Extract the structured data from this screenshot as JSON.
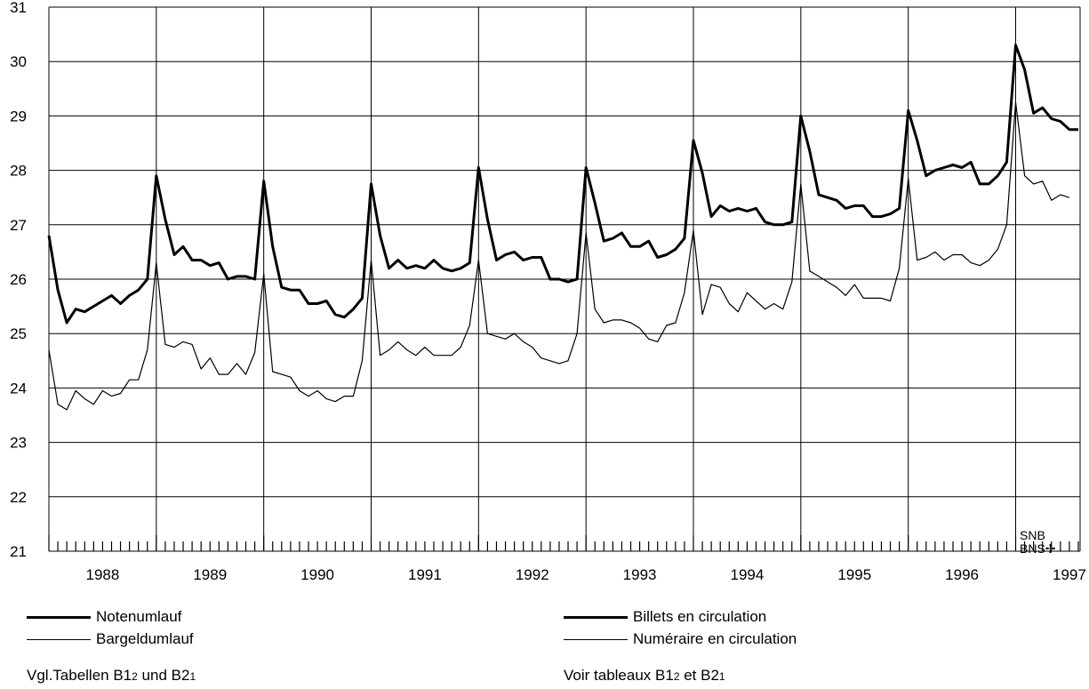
{
  "chart_data": {
    "type": "line",
    "ylim": [
      21,
      31
    ],
    "y_ticks": [
      21,
      22,
      23,
      24,
      25,
      26,
      27,
      28,
      29,
      30,
      31
    ],
    "x_start": 1988.0,
    "x_end": 1997.6,
    "x_tick_labels": [
      "1988",
      "1989",
      "1990",
      "1991",
      "1992",
      "1993",
      "1994",
      "1995",
      "1996",
      "1997"
    ],
    "grid": true,
    "series": [
      {
        "name": "Notenumlauf / Billets en circulation",
        "weight": "heavy",
        "values": [
          26.8,
          25.8,
          25.2,
          25.45,
          25.4,
          25.5,
          25.6,
          25.7,
          25.55,
          25.7,
          25.8,
          26.0,
          27.9,
          27.1,
          26.45,
          26.6,
          26.35,
          26.35,
          26.25,
          26.3,
          26.0,
          26.05,
          26.05,
          26.0,
          27.8,
          26.6,
          25.85,
          25.8,
          25.8,
          25.55,
          25.55,
          25.6,
          25.35,
          25.3,
          25.45,
          25.65,
          27.75,
          26.8,
          26.2,
          26.35,
          26.2,
          26.25,
          26.2,
          26.35,
          26.2,
          26.15,
          26.2,
          26.3,
          28.05,
          27.1,
          26.35,
          26.45,
          26.5,
          26.35,
          26.4,
          26.4,
          26.0,
          26.0,
          25.95,
          26.0,
          28.05,
          27.4,
          26.7,
          26.75,
          26.85,
          26.6,
          26.6,
          26.7,
          26.4,
          26.45,
          26.55,
          26.75,
          28.55,
          27.95,
          27.15,
          27.35,
          27.25,
          27.3,
          27.25,
          27.3,
          27.05,
          27.0,
          27.0,
          27.05,
          29.0,
          28.35,
          27.55,
          27.5,
          27.45,
          27.3,
          27.35,
          27.35,
          27.15,
          27.15,
          27.2,
          27.3,
          29.1,
          28.55,
          27.9,
          28.0,
          28.05,
          28.1,
          28.05,
          28.15,
          27.75,
          27.75,
          27.9,
          28.15,
          30.3,
          29.85,
          29.05,
          29.15,
          28.95,
          28.9,
          28.75,
          28.75
        ]
      },
      {
        "name": "Bargeldumlauf / Numéraire en circulation",
        "weight": "light",
        "values": [
          24.7,
          23.7,
          23.6,
          23.95,
          23.8,
          23.7,
          23.95,
          23.85,
          23.9,
          24.15,
          24.15,
          24.7,
          26.3,
          24.8,
          24.75,
          24.85,
          24.8,
          24.35,
          24.55,
          24.25,
          24.25,
          24.45,
          24.25,
          24.65,
          26.1,
          24.3,
          24.25,
          24.2,
          23.95,
          23.85,
          23.95,
          23.8,
          23.75,
          23.85,
          23.85,
          24.5,
          26.35,
          24.6,
          24.7,
          24.85,
          24.7,
          24.6,
          24.75,
          24.6,
          24.6,
          24.6,
          24.75,
          25.15,
          26.35,
          25.0,
          24.95,
          24.9,
          25.0,
          24.85,
          24.75,
          24.55,
          24.5,
          24.45,
          24.5,
          25.0,
          26.85,
          25.45,
          25.2,
          25.25,
          25.25,
          25.2,
          25.1,
          24.9,
          24.85,
          25.15,
          25.2,
          25.75,
          26.9,
          25.35,
          25.9,
          25.85,
          25.55,
          25.4,
          25.75,
          25.6,
          25.45,
          25.55,
          25.45,
          25.95,
          27.75,
          26.15,
          26.05,
          25.95,
          25.85,
          25.7,
          25.9,
          25.65,
          25.65,
          25.65,
          25.6,
          26.2,
          27.85,
          26.35,
          26.4,
          26.5,
          26.35,
          26.45,
          26.45,
          26.3,
          26.25,
          26.35,
          26.55,
          27.0,
          29.25,
          27.9,
          27.75,
          27.8,
          27.45,
          27.55,
          27.5
        ]
      }
    ]
  },
  "legend": {
    "de": [
      {
        "label": "Notenumlauf",
        "weight": "heavy"
      },
      {
        "label": "Bargeldumlauf",
        "weight": "light"
      }
    ],
    "fr": [
      {
        "label": "Billets en circulation",
        "weight": "heavy"
      },
      {
        "label": "Numéraire en circulation",
        "weight": "light"
      }
    ]
  },
  "notes": {
    "de": {
      "prefix": "Vgl.Tabellen B1",
      "sub1": "2",
      "mid": " und B2",
      "sub2": "1"
    },
    "fr": {
      "prefix": "Voir tableaux B1",
      "sub1": "2",
      "mid": " et B2",
      "sub2": "1"
    }
  },
  "logo": {
    "line1": "SNB",
    "line2": "BNS",
    "mark": "✢"
  }
}
